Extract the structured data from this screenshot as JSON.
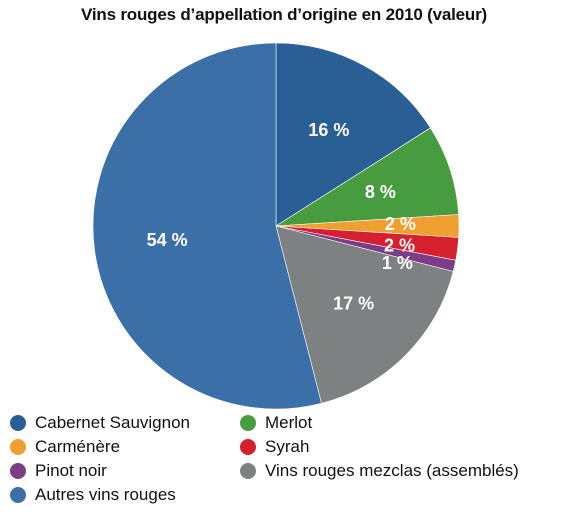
{
  "chart_data": {
    "type": "pie",
    "title": "Vins rouges d’appellation d’origine en 2010 (valeur)",
    "slices": [
      {
        "name": "Cabernet Sauvignon",
        "value": 16,
        "label": "16 %",
        "color": "#2a5f96"
      },
      {
        "name": "Merlot",
        "value": 8,
        "label": "8 %",
        "color": "#479c3f"
      },
      {
        "name": "Carménère",
        "value": 2,
        "label": "2 %",
        "color": "#f0a030"
      },
      {
        "name": "Syrah",
        "value": 2,
        "label": "2 %",
        "color": "#d6202e"
      },
      {
        "name": "Pinot noir",
        "value": 1,
        "label": "1 %",
        "color": "#7a3d86"
      },
      {
        "name": "Vins rouges mezclas (assemblés)",
        "value": 17,
        "label": "17 %",
        "color": "#7d8181"
      },
      {
        "name": "Autres vins rouges",
        "value": 54,
        "label": "54 %",
        "color": "#3b6fa8"
      }
    ],
    "legend_position": "bottom",
    "legend_order": [
      "Cabernet Sauvignon",
      "Merlot",
      "Carménère",
      "Syrah",
      "Pinot noir",
      "Vins rouges mezclas (assemblés)",
      "Autres vins rouges"
    ]
  }
}
